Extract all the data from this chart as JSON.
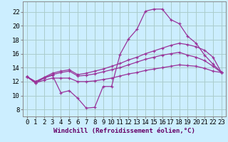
{
  "xlabel": "Windchill (Refroidissement éolien,°C)",
  "bg_color": "#cceeff",
  "grid_color": "#aacccc",
  "line_color": "#993399",
  "xlim": [
    -0.5,
    23.5
  ],
  "ylim": [
    7,
    23.5
  ],
  "yticks": [
    8,
    10,
    12,
    14,
    16,
    18,
    20,
    22
  ],
  "xticks": [
    0,
    1,
    2,
    3,
    4,
    5,
    6,
    7,
    8,
    9,
    10,
    11,
    12,
    13,
    14,
    15,
    16,
    17,
    18,
    19,
    20,
    21,
    22,
    23
  ],
  "series": [
    [
      12.7,
      11.8,
      12.5,
      12.9,
      10.4,
      10.7,
      9.6,
      8.2,
      8.3,
      11.3,
      11.3,
      15.9,
      18.1,
      19.5,
      22.1,
      22.4,
      22.4,
      20.9,
      20.3,
      18.5,
      17.5,
      15.8,
      14.5,
      13.3
    ],
    [
      12.7,
      12.0,
      12.6,
      13.2,
      13.5,
      13.7,
      13.0,
      13.2,
      13.5,
      13.8,
      14.2,
      14.6,
      15.1,
      15.5,
      16.0,
      16.4,
      16.8,
      17.2,
      17.5,
      17.3,
      17.0,
      16.5,
      15.5,
      13.3
    ],
    [
      12.7,
      12.0,
      12.5,
      13.0,
      13.3,
      13.5,
      12.8,
      12.9,
      13.1,
      13.4,
      13.7,
      14.0,
      14.4,
      14.8,
      15.2,
      15.5,
      15.8,
      16.0,
      16.2,
      15.8,
      15.5,
      15.0,
      14.2,
      13.3
    ],
    [
      12.7,
      11.8,
      12.2,
      12.5,
      12.5,
      12.5,
      12.0,
      12.0,
      12.1,
      12.3,
      12.5,
      12.8,
      13.1,
      13.3,
      13.6,
      13.8,
      14.0,
      14.2,
      14.4,
      14.3,
      14.2,
      13.9,
      13.5,
      13.3
    ]
  ],
  "tick_fontsize": 6.5,
  "xlabel_fontsize": 6.5,
  "xlabel_color": "#660066"
}
